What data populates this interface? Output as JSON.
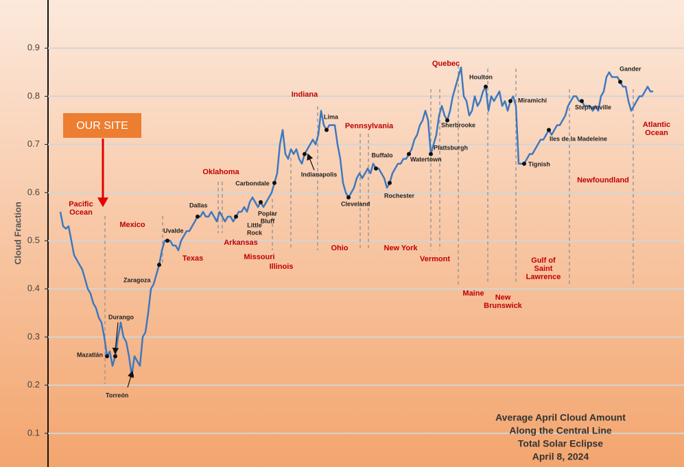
{
  "chart_data": {
    "type": "line",
    "y_axis_label": "Cloud Fraction",
    "color": "#3d78bf",
    "grid": true,
    "ylim": [
      0.03,
      1.0
    ],
    "yticks": [
      0.1,
      0.2,
      0.3,
      0.4,
      0.5,
      0.6,
      0.7,
      0.8,
      0.9
    ],
    "values": [
      0.56,
      0.53,
      0.525,
      0.53,
      0.5,
      0.47,
      0.46,
      0.45,
      0.44,
      0.42,
      0.4,
      0.39,
      0.37,
      0.36,
      0.34,
      0.33,
      0.3,
      0.26,
      0.27,
      0.24,
      0.26,
      0.3,
      0.33,
      0.3,
      0.29,
      0.26,
      0.22,
      0.26,
      0.25,
      0.24,
      0.3,
      0.31,
      0.35,
      0.4,
      0.41,
      0.43,
      0.45,
      0.48,
      0.5,
      0.5,
      0.5,
      0.49,
      0.49,
      0.48,
      0.5,
      0.51,
      0.52,
      0.52,
      0.53,
      0.54,
      0.55,
      0.55,
      0.56,
      0.55,
      0.55,
      0.56,
      0.55,
      0.54,
      0.56,
      0.55,
      0.54,
      0.55,
      0.55,
      0.54,
      0.55,
      0.56,
      0.56,
      0.57,
      0.56,
      0.58,
      0.59,
      0.58,
      0.57,
      0.58,
      0.57,
      0.58,
      0.59,
      0.6,
      0.62,
      0.64,
      0.7,
      0.73,
      0.68,
      0.67,
      0.69,
      0.68,
      0.69,
      0.67,
      0.66,
      0.68,
      0.69,
      0.7,
      0.71,
      0.7,
      0.72,
      0.77,
      0.74,
      0.73,
      0.74,
      0.74,
      0.74,
      0.7,
      0.67,
      0.62,
      0.6,
      0.59,
      0.6,
      0.61,
      0.63,
      0.64,
      0.63,
      0.64,
      0.65,
      0.64,
      0.66,
      0.65,
      0.65,
      0.64,
      0.63,
      0.61,
      0.62,
      0.64,
      0.65,
      0.66,
      0.66,
      0.67,
      0.67,
      0.68,
      0.69,
      0.71,
      0.72,
      0.74,
      0.75,
      0.77,
      0.75,
      0.68,
      0.7,
      0.72,
      0.76,
      0.78,
      0.76,
      0.75,
      0.77,
      0.8,
      0.82,
      0.84,
      0.86,
      0.8,
      0.79,
      0.76,
      0.77,
      0.8,
      0.78,
      0.79,
      0.81,
      0.82,
      0.77,
      0.8,
      0.79,
      0.8,
      0.81,
      0.78,
      0.79,
      0.77,
      0.79,
      0.8,
      0.78,
      0.66,
      0.66,
      0.66,
      0.67,
      0.68,
      0.68,
      0.69,
      0.7,
      0.71,
      0.71,
      0.72,
      0.73,
      0.72,
      0.73,
      0.74,
      0.74,
      0.75,
      0.76,
      0.78,
      0.79,
      0.8,
      0.8,
      0.79,
      0.79,
      0.78,
      0.78,
      0.78,
      0.77,
      0.78,
      0.77,
      0.8,
      0.81,
      0.84,
      0.85,
      0.84,
      0.84,
      0.84,
      0.83,
      0.82,
      0.82,
      0.79,
      0.77,
      0.78,
      0.79,
      0.8,
      0.8,
      0.81,
      0.82,
      0.81,
      0.81
    ],
    "cities": [
      [
        "Mazatlán"
      ],
      [
        "Durango"
      ],
      [
        "Torreón"
      ],
      [
        "Zaragoza"
      ],
      [
        "Uvalde"
      ],
      [
        "Dallas"
      ],
      [
        "Little",
        "Rock"
      ],
      [
        "Poplar",
        "Bluff"
      ],
      [
        "Carbondale"
      ],
      [
        "Indianapolis"
      ],
      [
        "Lima"
      ],
      [
        "Cleveland"
      ],
      [
        "Buffalo"
      ],
      [
        "Rochester"
      ],
      [
        "Watertown"
      ],
      [
        "Plattsburgh"
      ],
      [
        "Sherbrooke"
      ],
      [
        "Houlton"
      ],
      [
        "Miramichi"
      ],
      [
        "Tignish"
      ],
      [
        "Iles de la Madeleine"
      ],
      [
        "Stephenville"
      ],
      [
        "Gander"
      ]
    ],
    "regions": [
      [
        "Pacific",
        "Ocean"
      ],
      [
        "Mexico"
      ],
      [
        "Texas"
      ],
      [
        "Oklahoma"
      ],
      [
        "Arkansas"
      ],
      [
        "Missouri"
      ],
      [
        "Illinois"
      ],
      [
        "Indiana"
      ],
      [
        "Ohio"
      ],
      [
        "Pennsylvania"
      ],
      [
        "New York"
      ],
      [
        "Vermont"
      ],
      [
        "Quebec"
      ],
      [
        "Maine"
      ],
      [
        "New",
        "Brunswick"
      ],
      [
        "Gulf of",
        "Saint",
        "Lawrence"
      ],
      [
        "Newfoundland"
      ],
      [
        "Atlantic",
        "Ocean"
      ]
    ],
    "callout": "OUR SITE",
    "caption": [
      "Average April Cloud Amount",
      "Along the Central Line",
      "Total Solar Eclipse",
      "April 8, 2024"
    ]
  }
}
